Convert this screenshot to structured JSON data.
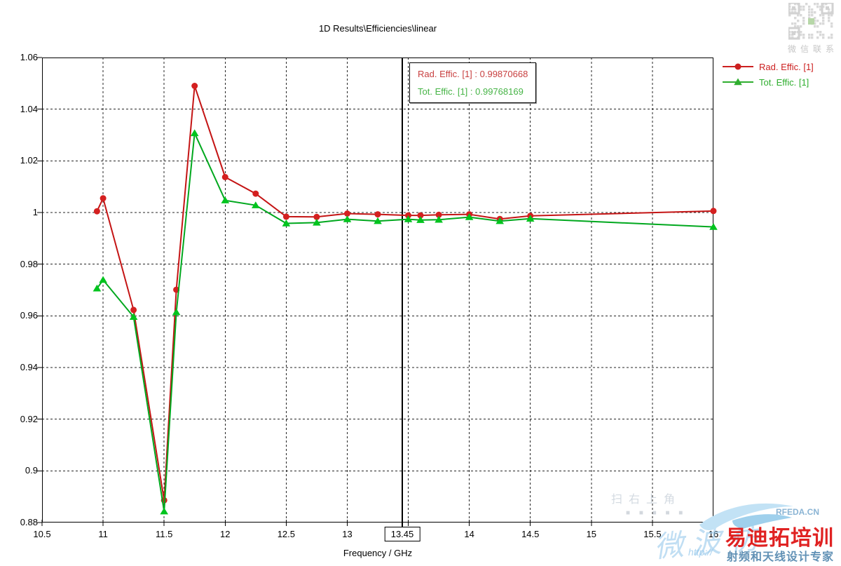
{
  "title": "1D Results\\Efficiencies\\linear",
  "marker_readout": {
    "x_value": "13.45",
    "lines": [
      {
        "text": "Rad. Effic. [1] : 0.99870668",
        "color": "#c84040"
      },
      {
        "text": "Tot. Effic. [1] : 0.99768169",
        "color": "#46b446"
      }
    ]
  },
  "legend": {
    "items": [
      {
        "label": "Rad. Effic. [1]",
        "color": "#cc2020",
        "marker": "circle"
      },
      {
        "label": "Tot. Effic. [1]",
        "color": "#2fae2f",
        "marker": "triangle"
      }
    ]
  },
  "watermarks": {
    "qr_caption": "微信联系",
    "faint_text": "扫右上角",
    "faint_squares": "■ ■ ■ ■ ■",
    "script_watermark": "微 波 仿",
    "url_fragment": "http://",
    "brand_name": "易迪拓培训",
    "brand_domain": "RFEDA.CN",
    "brand_tagline": "射频和天线设计专家"
  },
  "chart_data": {
    "type": "line",
    "title": "1D Results\\Efficiencies\\linear",
    "xlabel": "Frequency / GHz",
    "ylabel": "",
    "xlim": [
      10.5,
      16
    ],
    "ylim": [
      0.88,
      1.06
    ],
    "grid": "dashed",
    "legend_position": "top-right",
    "marker_line_x": 13.45,
    "marker_values": {
      "rad_effic": 0.99870668,
      "tot_effic": 0.99768169
    },
    "x_ticks": [
      {
        "value": 10.5,
        "label": "10.5"
      },
      {
        "value": 11,
        "label": "11"
      },
      {
        "value": 11.5,
        "label": "11.5"
      },
      {
        "value": 12,
        "label": "12"
      },
      {
        "value": 12.5,
        "label": "12.5"
      },
      {
        "value": 13,
        "label": "13"
      },
      {
        "value": 13.5,
        "label": null
      },
      {
        "value": 14,
        "label": "14"
      },
      {
        "value": 14.5,
        "label": "14.5"
      },
      {
        "value": 15,
        "label": "15"
      },
      {
        "value": 15.5,
        "label": "15.5"
      },
      {
        "value": 16,
        "label": "16"
      }
    ],
    "y_ticks": [
      {
        "value": 1.06,
        "label": "1.06"
      },
      {
        "value": 1.04,
        "label": "1.04"
      },
      {
        "value": 1.02,
        "label": "1.02"
      },
      {
        "value": 1,
        "label": "1"
      },
      {
        "value": 0.98,
        "label": "0.98"
      },
      {
        "value": 0.96,
        "label": "0.96"
      },
      {
        "value": 0.94,
        "label": "0.94"
      },
      {
        "value": 0.92,
        "label": "0.92"
      },
      {
        "value": 0.9,
        "label": "0.9"
      },
      {
        "value": 0.88,
        "label": "0.88"
      }
    ],
    "x": [
      10.95,
      11.0,
      11.25,
      11.5,
      11.6,
      11.75,
      12.0,
      12.25,
      12.5,
      12.75,
      13.0,
      13.25,
      13.5,
      13.6,
      13.75,
      14.0,
      14.25,
      14.5,
      16.0
    ],
    "series": [
      {
        "name": "Rad. Effic. [1]",
        "color": "#c41414",
        "marker": "circle",
        "marker_color": "#d42020",
        "values": [
          1.0005,
          1.0055,
          0.9623,
          0.8886,
          0.9701,
          1.049,
          1.0137,
          1.0073,
          0.9984,
          0.9983,
          0.9996,
          0.9993,
          0.9989,
          0.9989,
          0.9991,
          0.9993,
          0.9975,
          0.9987,
          1.0006
        ]
      },
      {
        "name": "Tot. Effic. [1]",
        "color": "#00a81e",
        "marker": "triangle",
        "marker_color": "#00c41e",
        "values": [
          0.9706,
          0.9739,
          0.9596,
          0.8843,
          0.9614,
          1.0307,
          1.0047,
          1.0028,
          0.9958,
          0.9961,
          0.9974,
          0.9967,
          0.9974,
          0.9971,
          0.9972,
          0.9982,
          0.9967,
          0.9976,
          0.9944
        ]
      }
    ]
  }
}
